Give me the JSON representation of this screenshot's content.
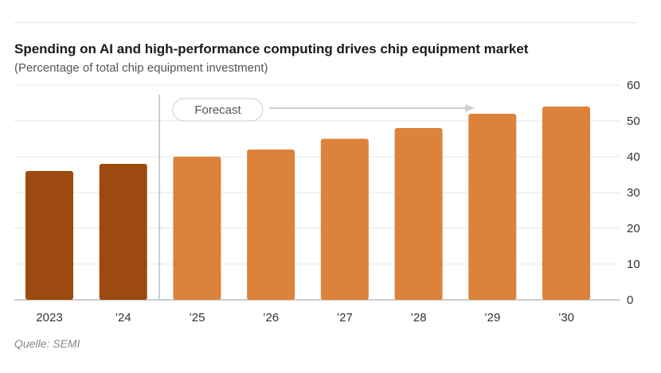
{
  "chart_data": {
    "type": "bar",
    "title": "Spending on AI and high-performance computing drives chip equipment market",
    "subtitle": "(Percentage of total chip equipment investment)",
    "source": "Quelle: SEMI",
    "categories": [
      "2023",
      "’24",
      "’25",
      "’26",
      "’27",
      "’28",
      "’29",
      "’30"
    ],
    "values": [
      36,
      38,
      40,
      42,
      45,
      48,
      52,
      54
    ],
    "forecast_start_index": 2,
    "forecast_label": "Forecast",
    "ylim": [
      0,
      60
    ],
    "yticks": [
      0,
      10,
      20,
      30,
      40,
      50,
      60
    ],
    "ytick_labels": [
      "0",
      "10",
      "20",
      "30",
      "40",
      "50",
      "60"
    ],
    "y_axis_position": "right",
    "grid": true,
    "colors": {
      "actual": "#9c4a10",
      "forecast": "#dc823b",
      "grid": "#e6e6e6",
      "divider": "#cccccc",
      "arrow": "#cfcfcf"
    }
  }
}
